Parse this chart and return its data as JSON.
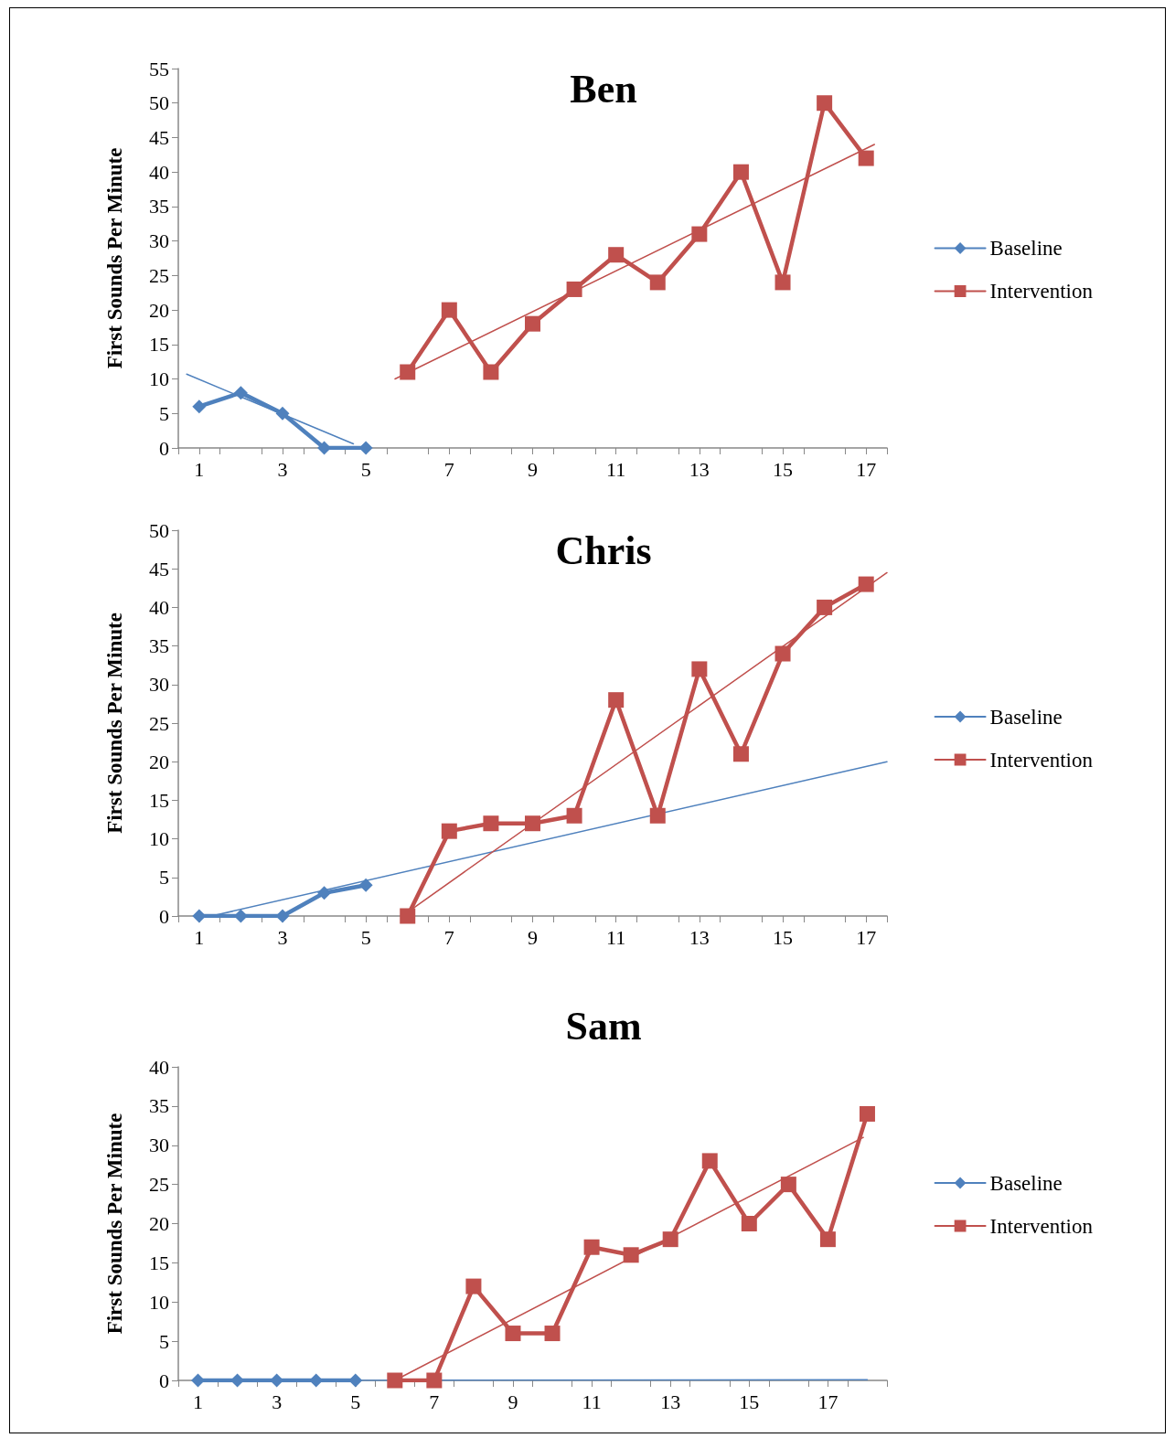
{
  "chart_data": [
    {
      "type": "line",
      "title": "Ben",
      "ylabel": "First Sounds Per Minute",
      "xlim": [
        0.5,
        17.5
      ],
      "ylim": [
        0,
        55
      ],
      "yticks": [
        0,
        5,
        10,
        15,
        20,
        25,
        30,
        35,
        40,
        45,
        50,
        55
      ],
      "xticks": [
        1,
        3,
        5,
        7,
        9,
        11,
        13,
        15,
        17,
        {
          "value": 0.5,
          "label": null
        },
        {
          "value": 1.5,
          "label": null
        },
        {
          "value": 2.5,
          "label": null
        },
        {
          "value": 3.5,
          "label": null
        },
        {
          "value": 4.5,
          "label": null
        },
        {
          "value": 5.5,
          "label": null
        },
        {
          "value": 6.5,
          "label": null
        },
        {
          "value": 7.5,
          "label": null
        },
        {
          "value": 8.5,
          "label": null
        },
        {
          "value": 9.5,
          "label": null
        },
        {
          "value": 10.5,
          "label": null
        },
        {
          "value": 11.5,
          "label": null
        },
        {
          "value": 12.5,
          "label": null
        },
        {
          "value": 13.5,
          "label": null
        },
        {
          "value": 14.5,
          "label": null
        },
        {
          "value": 15.5,
          "label": null
        },
        {
          "value": 16.5,
          "label": null
        },
        {
          "value": 17.5,
          "label": null
        }
      ],
      "legend": "right",
      "grid": false,
      "line_style": "solid",
      "series": [
        {
          "name": "Baseline",
          "color": "#4f81bd",
          "marker": "diamond",
          "x": [
            1,
            2,
            3,
            4,
            5
          ],
          "values": [
            6,
            8,
            5,
            0,
            0
          ]
        },
        {
          "name": "Intervention",
          "color": "#c0504d",
          "marker": "square",
          "x": [
            6,
            7,
            8,
            9,
            10,
            11,
            12,
            13,
            14,
            15,
            16,
            17
          ],
          "values": [
            11,
            20,
            11,
            18,
            23,
            28,
            24,
            31,
            40,
            24,
            50,
            42
          ]
        },
        {
          "color": "#4f81bd",
          "marker": "none",
          "x": [
            0.7,
            4.7
          ],
          "values": [
            10.7,
            0.6
          ]
        },
        {
          "color": "#c0504d",
          "marker": "none",
          "x": [
            5.7,
            17.2
          ],
          "values": [
            10,
            44
          ]
        }
      ]
    },
    {
      "type": "line",
      "title": "Chris",
      "ylabel": "First Sounds Per Minute",
      "xlim": [
        0.5,
        17.5
      ],
      "ylim": [
        0,
        50
      ],
      "yticks": [
        0,
        5,
        10,
        15,
        20,
        25,
        30,
        35,
        40,
        45,
        50
      ],
      "xticks": [
        1,
        3,
        5,
        7,
        9,
        11,
        13,
        15,
        17,
        {
          "value": 0.5,
          "label": null
        },
        {
          "value": 1.5,
          "label": null
        },
        {
          "value": 2.5,
          "label": null
        },
        {
          "value": 3.5,
          "label": null
        },
        {
          "value": 4.5,
          "label": null
        },
        {
          "value": 5.5,
          "label": null
        },
        {
          "value": 6.5,
          "label": null
        },
        {
          "value": 7.5,
          "label": null
        },
        {
          "value": 8.5,
          "label": null
        },
        {
          "value": 9.5,
          "label": null
        },
        {
          "value": 10.5,
          "label": null
        },
        {
          "value": 11.5,
          "label": null
        },
        {
          "value": 12.5,
          "label": null
        },
        {
          "value": 13.5,
          "label": null
        },
        {
          "value": 14.5,
          "label": null
        },
        {
          "value": 15.5,
          "label": null
        },
        {
          "value": 16.5,
          "label": null
        },
        {
          "value": 17.5,
          "label": null
        }
      ],
      "legend": "right",
      "grid": false,
      "line_style": "solid",
      "series": [
        {
          "name": "Baseline",
          "color": "#4f81bd",
          "marker": "diamond",
          "x": [
            1,
            2,
            3,
            4,
            5
          ],
          "values": [
            0,
            0,
            0,
            3,
            4
          ]
        },
        {
          "name": "Intervention",
          "color": "#c0504d",
          "marker": "square",
          "x": [
            6,
            7,
            8,
            9,
            10,
            11,
            12,
            13,
            14,
            15,
            16,
            17
          ],
          "values": [
            0,
            11,
            12,
            12,
            13,
            28,
            13,
            32,
            21,
            34,
            40,
            43
          ]
        },
        {
          "color": "#4f81bd",
          "marker": "none",
          "x": [
            1.3,
            17.5
          ],
          "values": [
            0,
            20
          ]
        },
        {
          "color": "#c0504d",
          "marker": "none",
          "x": [
            6,
            17.5
          ],
          "values": [
            0.5,
            44.5
          ]
        }
      ]
    },
    {
      "type": "line",
      "title": "Sam",
      "ylabel": "First Sounds Per Minute",
      "xlim": [
        0.5,
        18.5
      ],
      "ylim": [
        0,
        40
      ],
      "yticks": [
        0,
        5,
        10,
        15,
        20,
        25,
        30,
        35,
        40
      ],
      "xticks": [
        1,
        3,
        5,
        7,
        9,
        11,
        13,
        15,
        17,
        {
          "value": 0.5,
          "label": null
        },
        {
          "value": 1.5,
          "label": null
        },
        {
          "value": 2.5,
          "label": null
        },
        {
          "value": 3.5,
          "label": null
        },
        {
          "value": 4.5,
          "label": null
        },
        {
          "value": 5.5,
          "label": null
        },
        {
          "value": 6.5,
          "label": null
        },
        {
          "value": 7.5,
          "label": null
        },
        {
          "value": 8.5,
          "label": null
        },
        {
          "value": 9.5,
          "label": null
        },
        {
          "value": 10.5,
          "label": null
        },
        {
          "value": 11.5,
          "label": null
        },
        {
          "value": 12.5,
          "label": null
        },
        {
          "value": 13.5,
          "label": null
        },
        {
          "value": 14.5,
          "label": null
        },
        {
          "value": 15.5,
          "label": null
        },
        {
          "value": 16.5,
          "label": null
        },
        {
          "value": 17.5,
          "label": null
        },
        {
          "value": 18.5,
          "label": null
        }
      ],
      "legend": "right",
      "grid": false,
      "line_style": "solid",
      "series": [
        {
          "name": "Baseline",
          "color": "#4f81bd",
          "marker": "diamond",
          "x": [
            1,
            2,
            3,
            4,
            5
          ],
          "values": [
            0,
            0,
            0,
            0,
            0
          ]
        },
        {
          "name": "Intervention",
          "color": "#c0504d",
          "marker": "square",
          "x": [
            6,
            7,
            8,
            9,
            10,
            11,
            12,
            13,
            14,
            15,
            16,
            17,
            18
          ],
          "values": [
            0,
            0,
            12,
            6,
            6,
            17,
            16,
            18,
            28,
            20,
            25,
            18,
            34
          ]
        },
        {
          "color": "#4f81bd",
          "marker": "none",
          "x": [
            5,
            18
          ],
          "values": [
            0,
            0.1
          ]
        },
        {
          "color": "#c0504d",
          "marker": "none",
          "x": [
            6,
            17.9
          ],
          "values": [
            0,
            31
          ]
        }
      ]
    }
  ]
}
